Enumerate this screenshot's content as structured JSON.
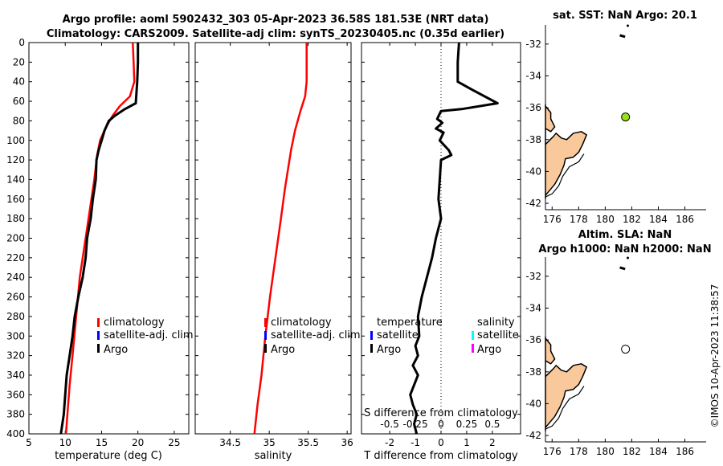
{
  "title": {
    "line1": "Argo profile: aoml 5902432_303 05-Apr-2023 36.58S 181.53E (NRT data)",
    "line2": "Climatology: CARS2009. Satellite-adj clim: synTS_20230405.nc (0.35d earlier)"
  },
  "credit": "©IMOS 10-Apr-2023 11:38:57",
  "colors": {
    "clim": "#ff0000",
    "sat": "#0000ff",
    "argo": "#000000",
    "sat_s": "#00ffff",
    "argo_s": "#ff00ff",
    "land": "#f9c89b",
    "float_sst": "#9ae01a"
  },
  "chart_data": [
    {
      "type": "line",
      "id": "temperature",
      "xlabel": "temperature (deg C)",
      "ylabel": "",
      "xlim": [
        5,
        27
      ],
      "ylim": [
        0,
        400
      ],
      "xticks": [
        "5",
        "10",
        "15",
        "20",
        "25"
      ],
      "yticks": [
        "0",
        "20",
        "40",
        "60",
        "80",
        "100",
        "120",
        "140",
        "160",
        "180",
        "200",
        "220",
        "240",
        "260",
        "280",
        "300",
        "320",
        "340",
        "360",
        "380",
        "400"
      ],
      "legend": [
        "climatology",
        "satellite-adj. clim",
        "Argo"
      ],
      "series": [
        {
          "name": "climatology",
          "color": "#ff0000",
          "x": [
            19.3,
            19.4,
            19.5,
            18.9,
            17.5,
            16.5,
            15.5,
            14.8,
            14.4,
            14.0,
            13.6,
            12.8,
            12.0,
            11.5,
            11.0,
            10.6,
            10.3,
            10.1
          ],
          "y": [
            0,
            20,
            40,
            55,
            65,
            75,
            88,
            100,
            115,
            140,
            160,
            200,
            240,
            280,
            320,
            350,
            380,
            400
          ]
        },
        {
          "name": "Argo",
          "color": "#000000",
          "x": [
            20.0,
            20.0,
            19.9,
            19.7,
            18.2,
            16.8,
            16.0,
            15.4,
            15.0,
            14.6,
            14.3,
            14.2,
            13.8,
            13.5,
            13.0,
            12.8,
            12.4,
            11.8,
            11.3,
            11.0,
            10.6,
            10.2,
            10.0,
            9.9,
            9.8,
            9.6,
            9.4
          ],
          "y": [
            0,
            20,
            40,
            62,
            68,
            75,
            80,
            90,
            100,
            110,
            120,
            140,
            160,
            180,
            200,
            220,
            240,
            260,
            280,
            300,
            320,
            340,
            360,
            370,
            380,
            390,
            400
          ]
        }
      ]
    },
    {
      "type": "line",
      "id": "salinity",
      "xlabel": "salinity",
      "ylabel": "",
      "xlim": [
        34.05,
        36.05
      ],
      "ylim": [
        0,
        400
      ],
      "xticks": [
        "34.5",
        "35",
        "35.5",
        "36"
      ],
      "legend": [
        "climatology",
        "satellite-adj. clim",
        "Argo"
      ],
      "series": [
        {
          "name": "climatology",
          "color": "#ff0000",
          "x": [
            35.48,
            35.48,
            35.48,
            35.46,
            35.4,
            35.33,
            35.28,
            35.24,
            35.2,
            35.15,
            35.08,
            35.01,
            34.95,
            34.9,
            34.85,
            34.81
          ],
          "y": [
            0,
            20,
            40,
            55,
            70,
            90,
            110,
            130,
            150,
            180,
            220,
            260,
            300,
            340,
            370,
            400
          ]
        }
      ]
    },
    {
      "type": "line",
      "id": "t-difference",
      "xlabel": "T difference from climatology",
      "xlabel2": "S difference from climatology",
      "xlim": [
        -3.1,
        3.1
      ],
      "ylim": [
        0,
        400
      ],
      "xticks": [
        "-2",
        "-1",
        "0",
        "1",
        "2"
      ],
      "xticks2": [
        "-0.5",
        "-0.25",
        "0",
        "0.25",
        "0.5"
      ],
      "legend": [
        "temperature",
        "satellite",
        "Argo",
        "salinity",
        "satellite",
        "Argo"
      ],
      "series": [
        {
          "name": "T difference",
          "color": "#000000",
          "x": [
            0.7,
            0.65,
            0.65,
            1.2,
            2.2,
            0.8,
            0.0,
            -0.15,
            0.05,
            -0.2,
            0.1,
            -0.05,
            0.3,
            0.4,
            0.0,
            -0.05,
            -0.1,
            0.0,
            -0.2,
            -0.35,
            -0.55,
            -0.75,
            -0.9,
            -0.85,
            -1.0,
            -0.9,
            -1.1,
            -0.9,
            -1.2,
            -1.1,
            -0.95,
            -1.05,
            -0.95
          ],
          "y": [
            0,
            20,
            40,
            48,
            62,
            68,
            70,
            78,
            82,
            88,
            92,
            100,
            110,
            115,
            120,
            140,
            160,
            180,
            200,
            220,
            240,
            260,
            280,
            300,
            310,
            320,
            330,
            340,
            360,
            370,
            380,
            390,
            400
          ]
        }
      ]
    },
    {
      "type": "scatter",
      "id": "map-sst",
      "title": "sat. SST: NaN Argo: 20.1",
      "xlim": [
        175.5,
        187.6
      ],
      "ylim": [
        -42.4,
        -30.8
      ],
      "xticks": [
        "176",
        "178",
        "180",
        "182",
        "184",
        "186"
      ],
      "yticks": [
        "-32",
        "-34",
        "-36",
        "-38",
        "-40",
        "-42"
      ],
      "points": [
        {
          "x": 181.53,
          "y": -36.58
        }
      ]
    },
    {
      "type": "scatter",
      "id": "map-sla",
      "title": "Altim. SLA: NaN",
      "title2": "Argo h1000: NaN h2000: NaN",
      "xlim": [
        175.5,
        187.6
      ],
      "ylim": [
        -42.4,
        -30.8
      ],
      "xticks": [
        "176",
        "178",
        "180",
        "182",
        "184",
        "186"
      ],
      "yticks": [
        "-32",
        "-34",
        "-36",
        "-38",
        "-40",
        "-42"
      ],
      "points": [
        {
          "x": 181.53,
          "y": -36.58
        }
      ]
    }
  ]
}
